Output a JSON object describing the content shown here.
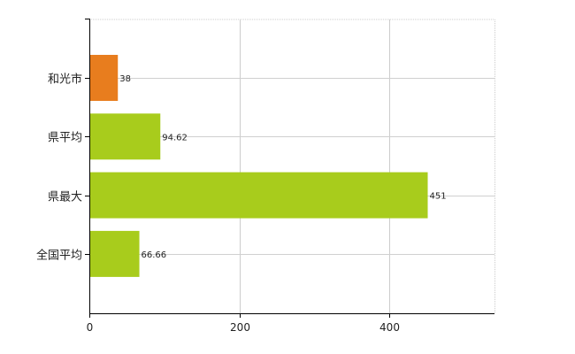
{
  "chart_data": {
    "type": "bar",
    "orientation": "horizontal",
    "categories": [
      "和光市",
      "県平均",
      "県最大",
      "全国平均"
    ],
    "values": [
      38,
      94.62,
      451,
      66.66
    ],
    "value_labels": [
      "38",
      "94.62",
      "451",
      "66.66"
    ],
    "bar_colors": [
      "#e87d1e",
      "#a8cc1c",
      "#a8cc1c",
      "#a8cc1c"
    ],
    "x_ticks": [
      0,
      200,
      400
    ],
    "x_tick_labels": [
      "0",
      "200",
      "400"
    ],
    "xlim": [
      0,
      540
    ],
    "grid": true,
    "legend": "none",
    "title": "",
    "xlabel": "",
    "ylabel": ""
  }
}
